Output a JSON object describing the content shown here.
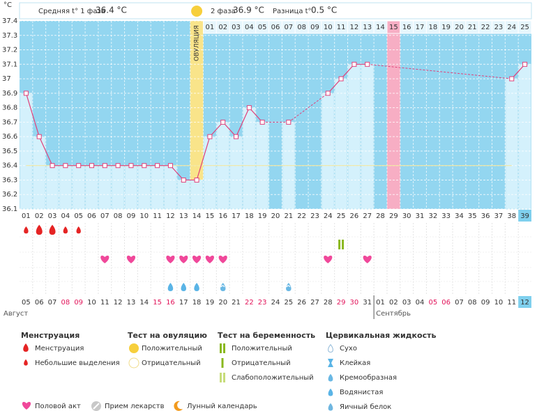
{
  "header": {
    "phase1_label": "Средняя t° 1 фаза",
    "phase1_value": "36.4 °C",
    "phase2_label": "2 фаза",
    "phase2_value": "36.9 °C",
    "diff_label": "Разница t°",
    "diff_value": "0.5 °C"
  },
  "chart_data": {
    "type": "line",
    "y_label": "°C",
    "categories": [
      "01",
      "02",
      "03",
      "04",
      "05",
      "06",
      "07",
      "08",
      "09",
      "10",
      "11",
      "12",
      "13",
      "14",
      "15",
      "16",
      "17",
      "18",
      "19",
      "20",
      "21",
      "22",
      "23",
      "24",
      "25",
      "26",
      "27",
      "28",
      "29",
      "30",
      "31",
      "32",
      "33",
      "34",
      "35",
      "36",
      "37",
      "38",
      "39"
    ],
    "values": [
      36.9,
      36.6,
      36.4,
      36.4,
      36.4,
      36.4,
      36.4,
      36.4,
      36.4,
      36.4,
      36.4,
      36.4,
      36.3,
      36.3,
      36.6,
      36.7,
      36.6,
      36.8,
      36.7,
      null,
      36.7,
      null,
      null,
      36.9,
      37.0,
      37.1,
      37.1,
      null,
      null,
      null,
      null,
      null,
      null,
      null,
      null,
      null,
      null,
      37.0,
      37.1
    ],
    "color": "#e0407a",
    "ylim": [
      36.1,
      37.4
    ],
    "yticks": [
      36.1,
      36.2,
      36.3,
      36.4,
      36.5,
      36.6,
      36.7,
      36.8,
      36.9,
      37,
      37.1,
      37.2,
      37.3,
      37.4
    ],
    "grid": true,
    "coverline": 36.4,
    "ovulation_day": 14,
    "ovulation_label": "ОВУЛЯЦИЯ",
    "phase2_days": [
      "01",
      "02",
      "03",
      "04",
      "05",
      "06",
      "07",
      "08",
      "09",
      "10",
      "11",
      "12",
      "13",
      "14",
      "15",
      "16",
      "17",
      "18",
      "19",
      "20",
      "21",
      "22",
      "23",
      "24",
      "25"
    ],
    "marked_day": 29,
    "today": 39,
    "months": [
      {
        "name": "Август",
        "dates": [
          "05",
          "06",
          "07",
          "08",
          "09",
          "10",
          "11",
          "12",
          "13",
          "14",
          "15",
          "16",
          "17",
          "18",
          "19",
          "20",
          "21",
          "22",
          "23",
          "24",
          "25",
          "26",
          "27",
          "28",
          "29",
          "30",
          "31"
        ],
        "weekends": [
          3,
          4,
          10,
          11,
          17,
          18,
          24,
          25
        ]
      },
      {
        "name": "Сентябрь",
        "dates": [
          "01",
          "02",
          "03",
          "04",
          "05",
          "06",
          "07",
          "08",
          "09",
          "10",
          "11",
          "12"
        ],
        "weekends": [
          4,
          5
        ]
      }
    ],
    "menstruation": [
      {
        "day": 1,
        "heavy": false
      },
      {
        "day": 2,
        "heavy": true
      },
      {
        "day": 3,
        "heavy": true
      },
      {
        "day": 4,
        "heavy": false
      },
      {
        "day": 5,
        "heavy": false
      }
    ],
    "pregnancy_test": [
      {
        "day": 25,
        "result": "positive"
      }
    ],
    "intercourse": [
      7,
      9,
      12,
      13,
      14,
      15,
      16,
      24,
      27
    ],
    "cervical_fluid": [
      {
        "day": 12,
        "kind": "watery"
      },
      {
        "day": 13,
        "kind": "watery"
      },
      {
        "day": 14,
        "kind": "watery"
      },
      {
        "day": 16,
        "kind": "creamy"
      },
      {
        "day": 21,
        "kind": "creamy"
      }
    ]
  },
  "legend": {
    "menstruation": {
      "title": "Менструация",
      "items": [
        "Менструация",
        "Небольшие выделения"
      ]
    },
    "ovulation_test": {
      "title": "Тест на овуляцию",
      "items": [
        "Положительный",
        "Отрицательный"
      ]
    },
    "pregnancy_test": {
      "title": "Тест на беременность",
      "items": [
        "Положительный",
        "Отрицательный",
        "Слабоположительный"
      ]
    },
    "cervical_fluid": {
      "title": "Цервикальная жидкость",
      "items": [
        "Сухо",
        "Клейкая",
        "Кремообразная",
        "Водянистая",
        "Яичный белок"
      ]
    },
    "other": [
      "Половой акт",
      "Прием лекарств",
      "Лунный календарь"
    ]
  }
}
